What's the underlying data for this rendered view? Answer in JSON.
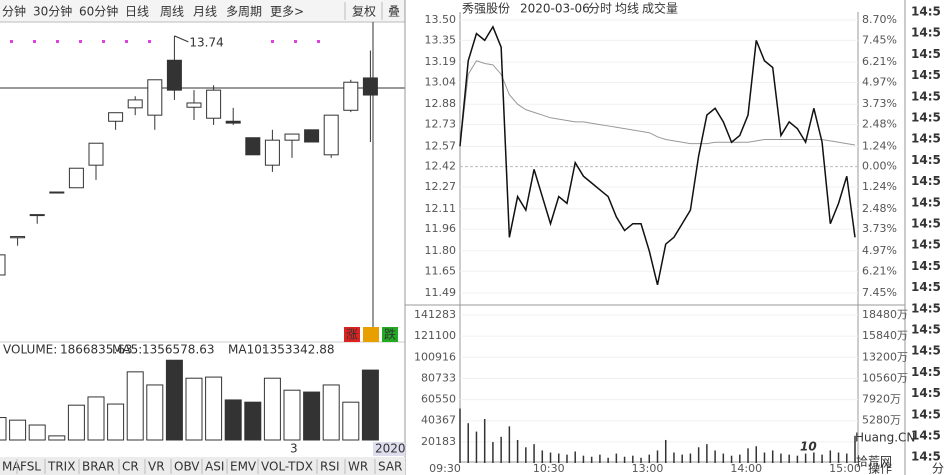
{
  "toolbar": {
    "tabs": [
      "分钟",
      "30分钟",
      "60分钟",
      "日线",
      "周线",
      "月线",
      "多周期",
      "更多>"
    ],
    "active_tab": 3,
    "buttons": [
      "复权",
      "叠"
    ]
  },
  "left_chart": {
    "ylim": [
      9.0,
      14.0
    ],
    "candles": [
      {
        "o": 9.82,
        "h": 10.2,
        "l": 9.8,
        "c": 10.15
      },
      {
        "o": 10.43,
        "h": 10.45,
        "l": 10.3,
        "c": 10.45
      },
      {
        "o": 10.8,
        "h": 10.81,
        "l": 10.66,
        "c": 10.81
      },
      {
        "o": 11.17,
        "h": 11.18,
        "l": 11.17,
        "c": 11.18
      },
      {
        "o": 11.25,
        "h": 11.57,
        "l": 11.25,
        "c": 11.57
      },
      {
        "o": 11.62,
        "h": 11.98,
        "l": 11.38,
        "c": 11.98
      },
      {
        "o": 12.34,
        "h": 12.48,
        "l": 12.2,
        "c": 12.48
      },
      {
        "o": 12.56,
        "h": 12.75,
        "l": 12.44,
        "c": 12.69
      },
      {
        "o": 12.44,
        "h": 13.02,
        "l": 12.2,
        "c": 13.02
      },
      {
        "o": 13.34,
        "h": 13.74,
        "l": 12.69,
        "c": 12.85
      },
      {
        "o": 12.57,
        "h": 12.85,
        "l": 12.36,
        "c": 12.64
      },
      {
        "o": 12.39,
        "h": 12.93,
        "l": 12.28,
        "c": 12.85
      },
      {
        "o": 12.34,
        "h": 12.56,
        "l": 12.28,
        "c": 12.31
      },
      {
        "o": 12.07,
        "h": 12.07,
        "l": 11.79,
        "c": 11.79
      },
      {
        "o": 11.62,
        "h": 12.2,
        "l": 11.51,
        "c": 12.03
      },
      {
        "o": 12.03,
        "h": 12.13,
        "l": 11.74,
        "c": 12.13
      },
      {
        "o": 12.2,
        "h": 12.2,
        "l": 12.0,
        "c": 12.0
      },
      {
        "o": 11.79,
        "h": 12.44,
        "l": 11.74,
        "c": 12.44
      },
      {
        "o": 12.52,
        "h": 13.02,
        "l": 12.49,
        "c": 12.98
      },
      {
        "o": 13.05,
        "h": 13.5,
        "l": 12.0,
        "c": 12.77
      }
    ],
    "high_index": 9,
    "volume": {
      "prefix": "VOLUME:",
      "ma": [
        {
          "label": "MA5:",
          "value": 1356578.63
        },
        {
          "label": "MA10:",
          "value": 1353342.88
        }
      ],
      "ylim": [
        0,
        2350000
      ],
      "values": [
        600000,
        530000,
        400000,
        110000,
        930000,
        1150000,
        960000,
        1820000,
        1470000,
        2130000,
        1650000,
        1680000,
        1070000,
        1010000,
        1650000,
        1330000,
        1280000,
        1470000,
        1010000,
        1866835.63
      ]
    },
    "date_labels": [
      "3",
      "2020"
    ],
    "buttons": [
      "涨",
      "跌"
    ]
  },
  "indicator_tabs": {
    "tabs": [
      "MA",
      "FSL",
      "TRIX",
      "BRAR",
      "CR",
      "VR",
      "OBV",
      "ASI",
      "EMV",
      "VOL-TDX",
      "RSI",
      "WR",
      "SAR"
    ],
    "active_tab": 9
  },
  "intraday": {
    "header": [
      "秀强股份",
      "2020-03-06",
      "分时",
      "均线",
      "成交量"
    ],
    "ylim": [
      11.49,
      13.5
    ],
    "yticks": [
      {
        "value": 13.5,
        "label": "13.50"
      },
      13.35,
      13.19,
      13.04,
      12.88,
      12.73,
      12.57,
      12.42,
      12.27,
      12.11,
      11.96,
      {
        "value": 11.8,
        "label": "11.80"
      },
      11.65,
      11.49
    ],
    "pct_ticks": [
      "8.70%",
      "7.45%",
      "6.21%",
      "4.97%",
      "3.73%",
      "2.48%",
      "1.24%",
      "0.00%",
      "1.24%",
      "2.48%",
      "3.73%",
      "4.97%",
      "6.21%",
      "7.45%"
    ],
    "prices": [
      12.57,
      13.2,
      13.4,
      13.35,
      13.45,
      13.3,
      11.9,
      12.2,
      12.1,
      12.4,
      12.2,
      12.0,
      12.2,
      12.15,
      12.45,
      12.35,
      12.3,
      12.25,
      12.2,
      12.05,
      11.95,
      12.0,
      12.0,
      11.8,
      11.55,
      11.85,
      11.9,
      12.0,
      12.1,
      12.5,
      12.8,
      12.85,
      12.75,
      12.6,
      12.65,
      12.8,
      13.35,
      13.2,
      13.15,
      12.65,
      12.75,
      12.7,
      12.6,
      12.85,
      12.6,
      12.0,
      12.15,
      12.35,
      11.9
    ],
    "avg": [
      12.57,
      13.1,
      13.2,
      13.18,
      13.17,
      13.1,
      12.95,
      12.88,
      12.84,
      12.82,
      12.8,
      12.78,
      12.77,
      12.76,
      12.75,
      12.75,
      12.74,
      12.73,
      12.72,
      12.71,
      12.7,
      12.69,
      12.68,
      12.67,
      12.64,
      12.62,
      12.61,
      12.6,
      12.59,
      12.59,
      12.59,
      12.6,
      12.6,
      12.6,
      12.6,
      12.6,
      12.61,
      12.62,
      12.62,
      12.62,
      12.62,
      12.62,
      12.62,
      12.62,
      12.62,
      12.61,
      12.6,
      12.59,
      12.58
    ],
    "volume": {
      "ylim": [
        0,
        141283
      ],
      "yticks": [
        141283,
        121100,
        100916,
        80733,
        60550,
        40367,
        20183
      ],
      "right_ticks": [
        "18480万",
        "15840万",
        "13200万",
        "10560万",
        "7920万",
        "5280万"
      ],
      "values": [
        52000,
        38000,
        30000,
        42000,
        20000,
        25000,
        35000,
        22000,
        15000,
        18000,
        12000,
        10000,
        9000,
        8000,
        11000,
        7000,
        6000,
        8000,
        5000,
        9000,
        6000,
        7000,
        5000,
        8000,
        12000,
        22000,
        10000,
        8000,
        9000,
        15000,
        18000,
        12000,
        9000,
        7000,
        8000,
        14000,
        16000,
        10000,
        12000,
        9000,
        8000,
        7000,
        9000,
        10000,
        8000,
        12000,
        10000,
        9000,
        26000
      ]
    },
    "time_ticks": [
      "09:30",
      "10:30",
      "13:00",
      "14:00",
      "15:00"
    ]
  },
  "time_list": [
    "14:5",
    "14:5",
    "14:5",
    "14:5",
    "14:5",
    "14:5",
    "14:5",
    "14:5",
    "14:5",
    "14:5",
    "14:5",
    "14:5",
    "14:5",
    "14:5",
    "14:5",
    "14:5",
    "14:5",
    "14:5",
    "14:5",
    "14:5",
    "14:5",
    "14:5"
  ],
  "footer": [
    "操作",
    "分"
  ],
  "watermark": {
    "number": "10",
    "site": "Huang.CN",
    "name": "拾荒网"
  }
}
